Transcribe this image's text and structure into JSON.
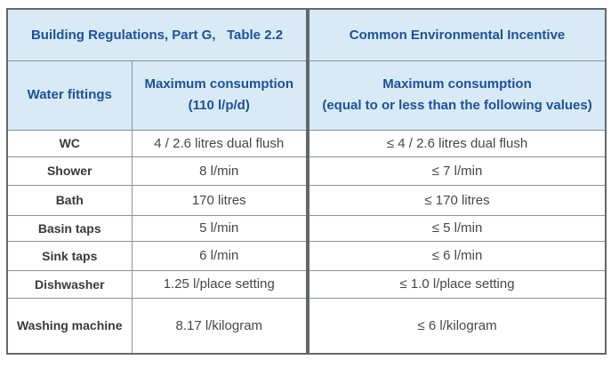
{
  "table": {
    "left_title": "Building Regulations, Part G,   Table 2.2",
    "right_title": "Common Environmental Incentive",
    "left_header": {
      "col1": "Water fittings",
      "col2_line1": "Maximum consumption",
      "col2_line2": "(110 l/p/d)"
    },
    "right_header": {
      "line1": "Maximum consumption",
      "line2": "(equal to or less than the following values)"
    },
    "colors": {
      "header_bg": "#d8eaf5",
      "header_text": "#1d5199",
      "body_text": "#474747",
      "border_outer": "#63686d",
      "border_inner": "#8d9296"
    },
    "rows": [
      {
        "fitting": "WC",
        "regulation": "4 / 2.6 litres dual flush",
        "incentive": "≤ 4 / 2.6 litres dual flush"
      },
      {
        "fitting": "Shower",
        "regulation": "8 l/min",
        "incentive": "≤ 7 l/min"
      },
      {
        "fitting": "Bath",
        "regulation": "170 litres",
        "incentive": "≤ 170 litres"
      },
      {
        "fitting": "Basin taps",
        "regulation": "5 l/min",
        "incentive": "≤ 5 l/min"
      },
      {
        "fitting": "Sink taps",
        "regulation": "6 l/min",
        "incentive": "≤ 6 l/min"
      },
      {
        "fitting": "Dishwasher",
        "regulation": "1.25 l/place setting",
        "incentive": "≤ 1.0 l/place setting"
      },
      {
        "fitting": "Washing machine",
        "regulation": "8.17 l/kilogram",
        "incentive": "≤ 6 l/kilogram"
      }
    ]
  }
}
